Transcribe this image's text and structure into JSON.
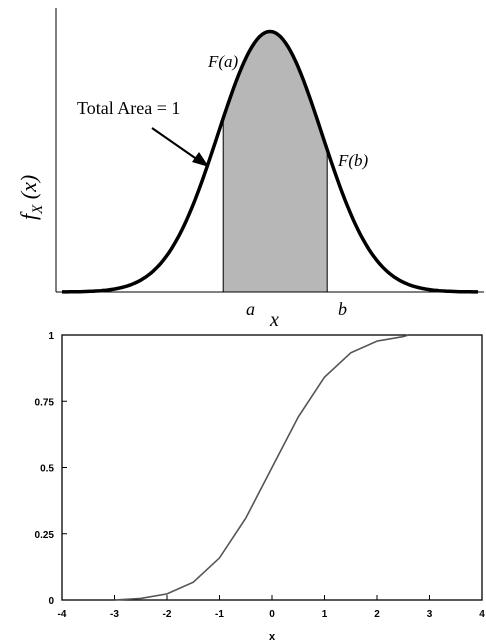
{
  "chart_data": [
    {
      "type": "area",
      "xlabel": "x",
      "ylabel": "f_X (x)",
      "ylabel_parts": {
        "main": "f",
        "sub": "X",
        "arg": " (x)"
      },
      "series": [
        {
          "x": [
            -4.0,
            -3.5,
            -3.0,
            -2.5,
            -2.0,
            -1.5,
            -1.0,
            -0.5,
            0.0,
            0.5,
            1.0,
            1.5,
            2.0,
            2.5,
            3.0,
            3.5,
            4.0
          ],
          "y": [
            0.0001,
            0.0009,
            0.0044,
            0.0175,
            0.054,
            0.1295,
            0.242,
            0.352,
            0.399,
            0.352,
            0.242,
            0.1295,
            0.054,
            0.0175,
            0.0044,
            0.0009,
            0.0001
          ]
        }
      ],
      "shaded_region": {
        "from": -0.9,
        "to": 1.1
      },
      "annotations": {
        "total_area": "Total Area = 1",
        "fa": "F(a)",
        "fb": "F(b)",
        "a": "a",
        "b": "b"
      },
      "xlim": [
        -4,
        4
      ],
      "grid": false,
      "colors": {
        "curve": "#000000",
        "shade": "#b7b7b7"
      }
    },
    {
      "type": "line",
      "xlabel": "x",
      "ylabel": "",
      "series": [
        {
          "x": [
            -3.0,
            -2.5,
            -2.0,
            -1.5,
            -1.0,
            -0.5,
            0.0,
            0.5,
            1.0,
            1.5,
            2.0,
            2.5,
            2.6
          ],
          "y": [
            0.0,
            0.006,
            0.023,
            0.067,
            0.159,
            0.309,
            0.5,
            0.691,
            0.841,
            0.933,
            0.977,
            0.994,
            1.0
          ]
        }
      ],
      "xlim": [
        -4,
        4
      ],
      "ylim": [
        0,
        1
      ],
      "xticks": [
        -4,
        -3,
        -2,
        -1,
        0,
        1,
        2,
        3,
        4
      ],
      "xtick_labels": [
        "-4",
        "-3",
        "-2",
        "-1",
        "0",
        "1",
        "2",
        "3",
        "4"
      ],
      "yticks": [
        0,
        0.25,
        0.5,
        0.75,
        1
      ],
      "ytick_labels": [
        "0",
        "0.25",
        "0.5",
        "0.75",
        "1"
      ],
      "grid": false,
      "colors": {
        "line": "#555555"
      }
    }
  ]
}
